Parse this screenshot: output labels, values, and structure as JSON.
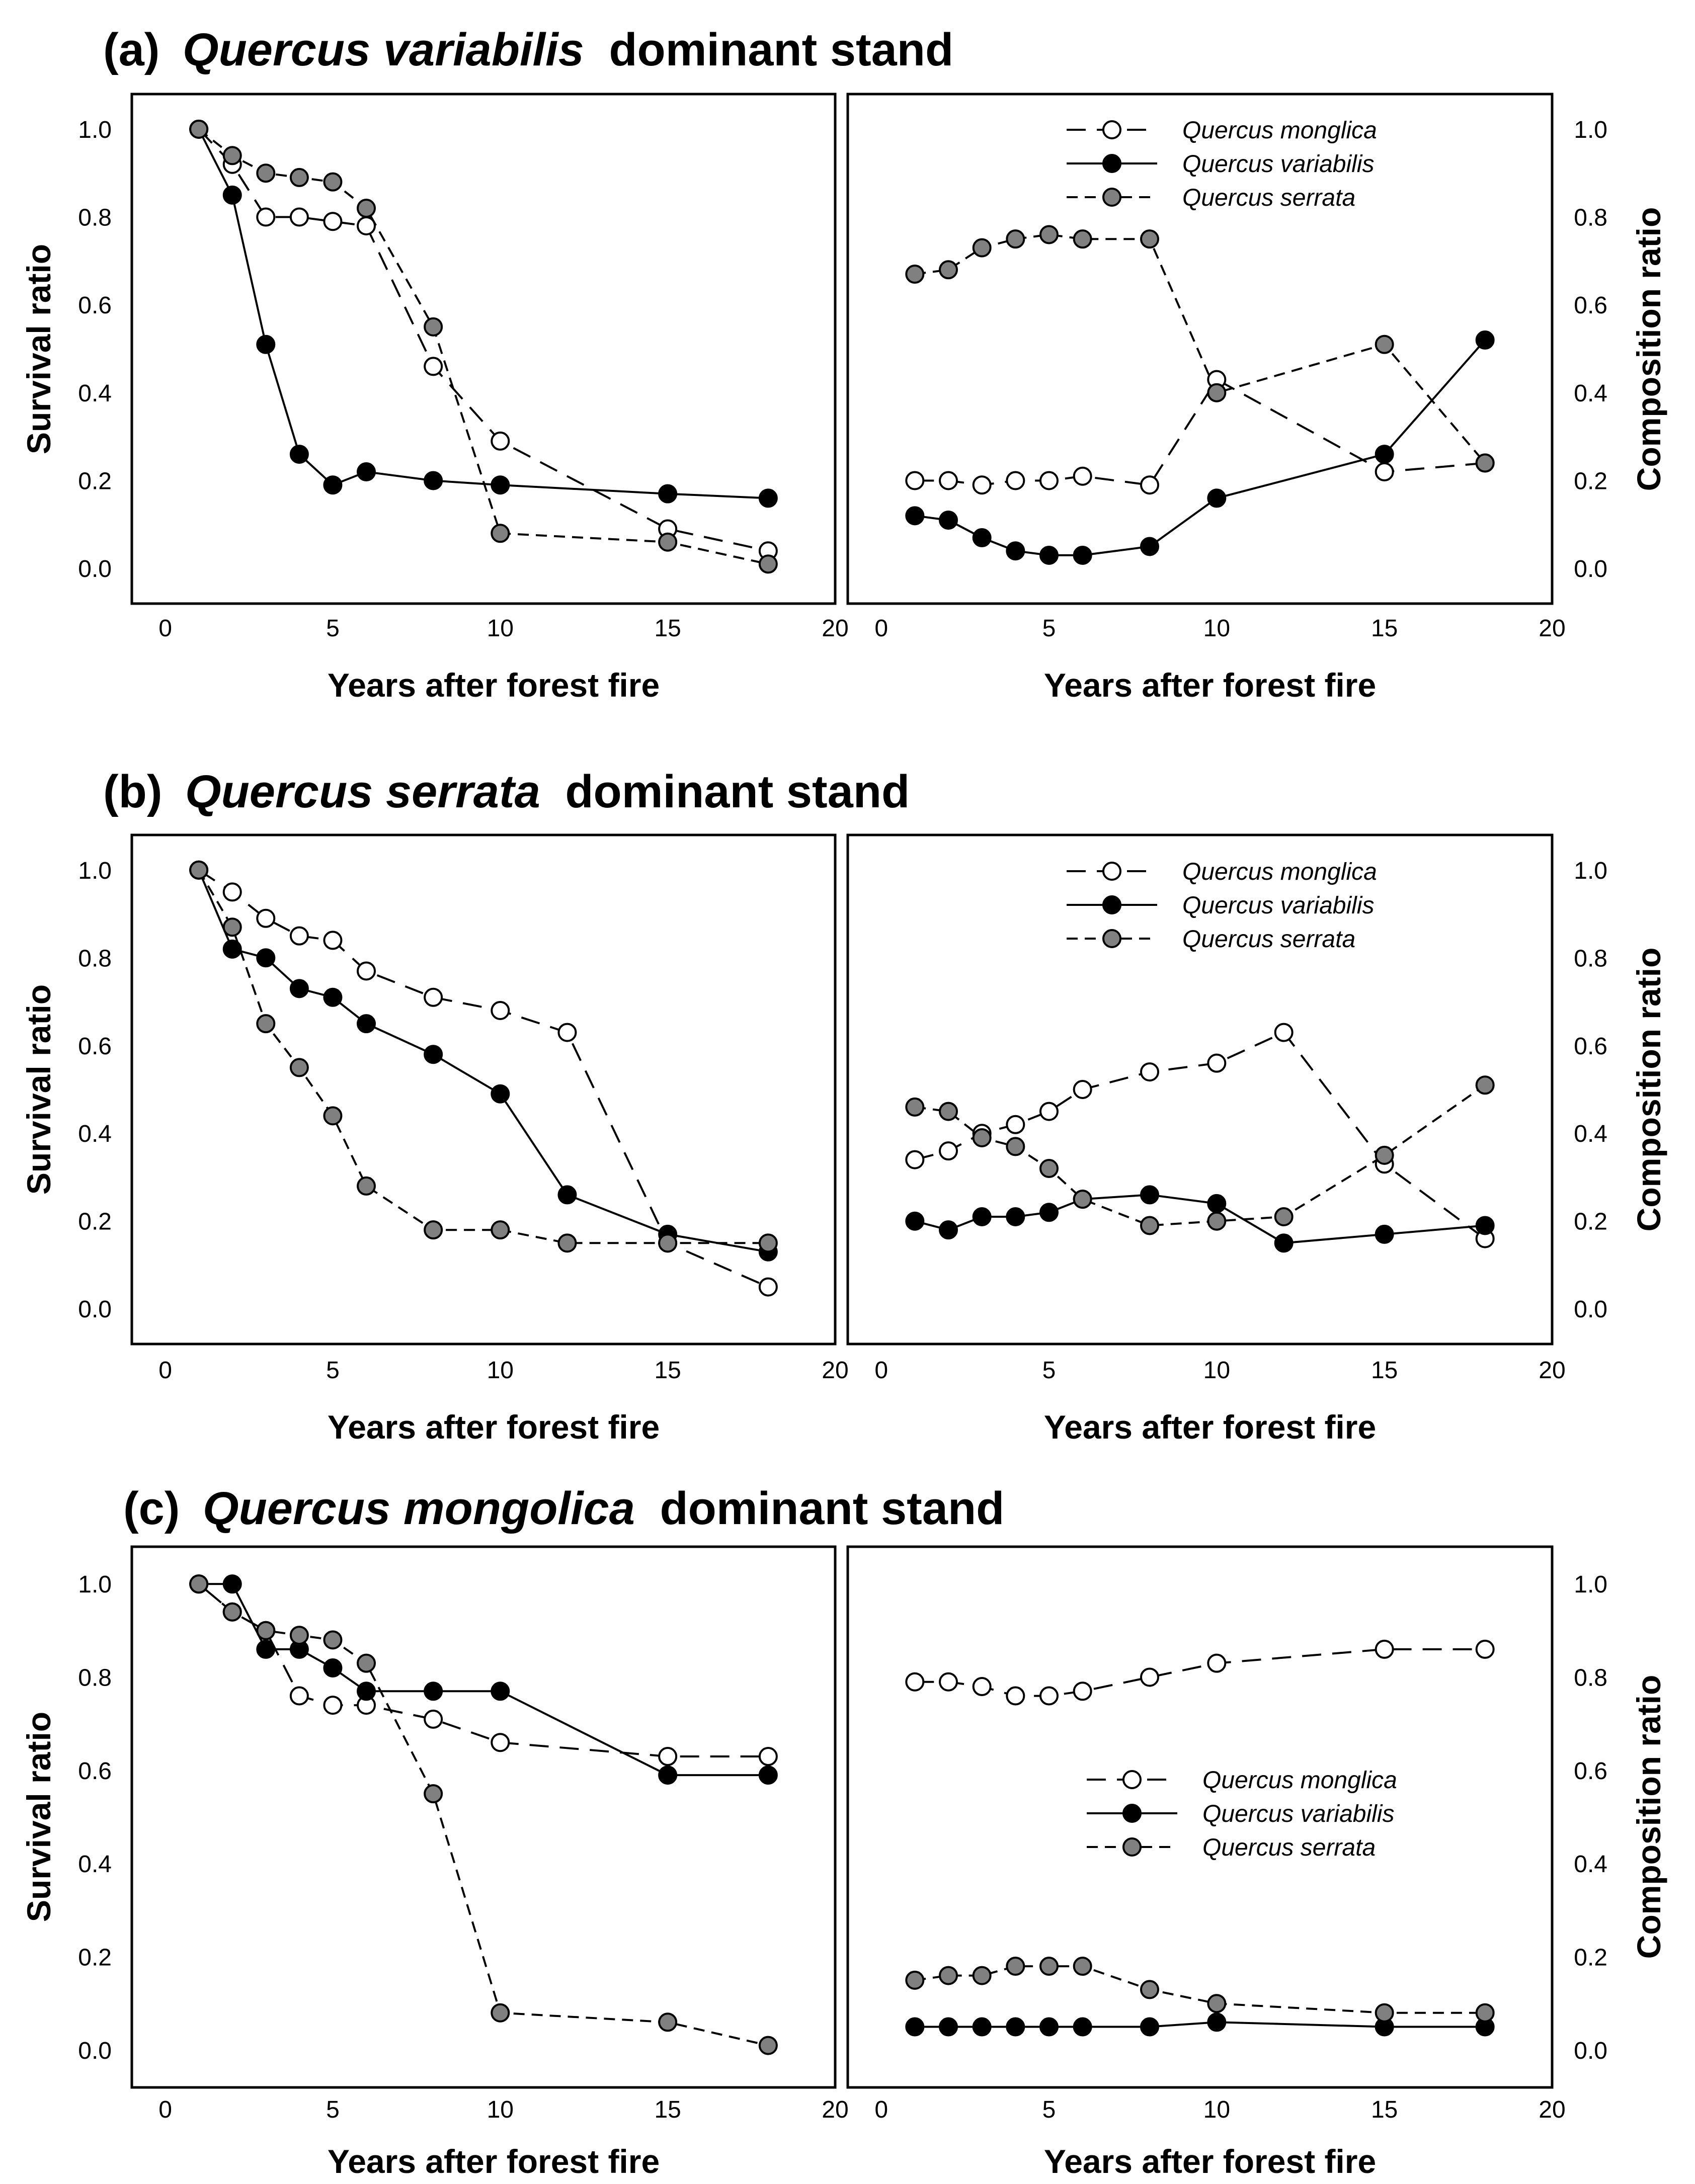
{
  "figure": {
    "x_axis_label": "Years after forest fire",
    "y_axis_label_left": "Survival ratio",
    "y_axis_label_right": "Composition ratio",
    "x_ticks": [
      "0",
      "5",
      "10",
      "15",
      "20"
    ],
    "y_ticks": [
      "0.0",
      "0.2",
      "0.4",
      "0.6",
      "0.8",
      "1.0"
    ],
    "legend": [
      {
        "name": "Quercus monglica",
        "marker": "open-circle",
        "line": "long-dash",
        "color": "#ffffff"
      },
      {
        "name": "Quercus variabilis",
        "marker": "filled-circle",
        "line": "solid",
        "color": "#000000"
      },
      {
        "name": "Quercus serrata",
        "marker": "gray-circle",
        "line": "short-dash",
        "color": "#808080"
      }
    ]
  },
  "panels": [
    {
      "label": "(a)",
      "title_species": "Quercus variabilis",
      "title_suffix": "dominant stand"
    },
    {
      "label": "(b)",
      "title_species": "Quercus serrata",
      "title_suffix": "dominant stand"
    },
    {
      "label": "(c)",
      "title_species": "Quercus mongolica",
      "title_suffix": "dominant stand"
    }
  ],
  "chart_data": [
    {
      "type": "line",
      "panel": "(a)",
      "plot": "survival",
      "title": "Quercus variabilis dominant stand",
      "xlabel": "Years after forest fire",
      "ylabel": "Survival ratio",
      "xlim": [
        0,
        20
      ],
      "ylim": [
        -0.08,
        1.08
      ],
      "series": [
        {
          "name": "Quercus monglica",
          "x": [
            1,
            2,
            3,
            4,
            5,
            6,
            8,
            10,
            15,
            18
          ],
          "values": [
            1.0,
            0.92,
            0.8,
            0.8,
            0.79,
            0.78,
            0.46,
            0.29,
            0.09,
            0.04
          ]
        },
        {
          "name": "Quercus variabilis",
          "x": [
            1,
            2,
            3,
            4,
            5,
            6,
            8,
            10,
            15,
            18
          ],
          "values": [
            1.0,
            0.85,
            0.51,
            0.26,
            0.19,
            0.22,
            0.2,
            0.19,
            0.17,
            0.16
          ]
        },
        {
          "name": "Quercus serrata",
          "x": [
            1,
            2,
            3,
            4,
            5,
            6,
            8,
            10,
            15,
            18
          ],
          "values": [
            1.0,
            0.94,
            0.9,
            0.89,
            0.88,
            0.82,
            0.55,
            0.08,
            0.06,
            0.01
          ]
        }
      ]
    },
    {
      "type": "line",
      "panel": "(a)",
      "plot": "composition",
      "xlabel": "Years after forest fire",
      "ylabel": "Composition ratio",
      "xlim": [
        0,
        20
      ],
      "ylim": [
        -0.08,
        1.08
      ],
      "legend_position": "top-right",
      "series": [
        {
          "name": "Quercus monglica",
          "x": [
            1,
            2,
            3,
            4,
            5,
            6,
            8,
            10,
            15,
            18
          ],
          "values": [
            0.2,
            0.2,
            0.19,
            0.2,
            0.2,
            0.21,
            0.19,
            0.43,
            0.22,
            0.24
          ]
        },
        {
          "name": "Quercus variabilis",
          "x": [
            1,
            2,
            3,
            4,
            5,
            6,
            8,
            10,
            15,
            18
          ],
          "values": [
            0.12,
            0.11,
            0.07,
            0.04,
            0.03,
            0.03,
            0.05,
            0.16,
            0.26,
            0.52
          ]
        },
        {
          "name": "Quercus serrata",
          "x": [
            1,
            2,
            3,
            4,
            5,
            6,
            8,
            10,
            15,
            18
          ],
          "values": [
            0.67,
            0.68,
            0.73,
            0.75,
            0.76,
            0.75,
            0.75,
            0.4,
            0.51,
            0.24
          ]
        }
      ]
    },
    {
      "type": "line",
      "panel": "(b)",
      "plot": "survival",
      "title": "Quercus serrata dominant stand",
      "xlabel": "Years after forest fire",
      "ylabel": "Survival ratio",
      "xlim": [
        0,
        20
      ],
      "ylim": [
        -0.08,
        1.08
      ],
      "series": [
        {
          "name": "Quercus monglica",
          "x": [
            1,
            2,
            3,
            4,
            5,
            6,
            8,
            10,
            12,
            15,
            18
          ],
          "values": [
            1.0,
            0.95,
            0.89,
            0.85,
            0.84,
            0.77,
            0.71,
            0.68,
            0.63,
            0.15,
            0.05
          ]
        },
        {
          "name": "Quercus variabilis",
          "x": [
            1,
            2,
            3,
            4,
            5,
            6,
            8,
            10,
            12,
            15,
            18
          ],
          "values": [
            1.0,
            0.82,
            0.8,
            0.73,
            0.71,
            0.65,
            0.58,
            0.49,
            0.26,
            0.17,
            0.13
          ]
        },
        {
          "name": "Quercus serrata",
          "x": [
            1,
            2,
            3,
            4,
            5,
            6,
            8,
            10,
            12,
            15,
            18
          ],
          "values": [
            1.0,
            0.87,
            0.65,
            0.55,
            0.44,
            0.28,
            0.18,
            0.18,
            0.15,
            0.15,
            0.15
          ]
        }
      ]
    },
    {
      "type": "line",
      "panel": "(b)",
      "plot": "composition",
      "xlabel": "Years after forest fire",
      "ylabel": "Composition ratio",
      "xlim": [
        0,
        20
      ],
      "ylim": [
        -0.08,
        1.08
      ],
      "legend_position": "top-right",
      "series": [
        {
          "name": "Quercus monglica",
          "x": [
            1,
            2,
            3,
            4,
            5,
            6,
            8,
            10,
            12,
            15,
            18
          ],
          "values": [
            0.34,
            0.36,
            0.4,
            0.42,
            0.45,
            0.5,
            0.54,
            0.56,
            0.63,
            0.33,
            0.16
          ]
        },
        {
          "name": "Quercus variabilis",
          "x": [
            1,
            2,
            3,
            4,
            5,
            6,
            8,
            10,
            12,
            15,
            18
          ],
          "values": [
            0.2,
            0.18,
            0.21,
            0.21,
            0.22,
            0.25,
            0.26,
            0.24,
            0.15,
            0.17,
            0.19
          ]
        },
        {
          "name": "Quercus serrata",
          "x": [
            1,
            2,
            3,
            4,
            5,
            6,
            8,
            10,
            12,
            15,
            18
          ],
          "values": [
            0.46,
            0.45,
            0.39,
            0.37,
            0.32,
            0.25,
            0.19,
            0.2,
            0.21,
            0.35,
            0.51
          ]
        }
      ]
    },
    {
      "type": "line",
      "panel": "(c)",
      "plot": "survival",
      "title": "Quercus mongolica dominant stand",
      "xlabel": "Years after forest fire",
      "ylabel": "Survival ratio",
      "xlim": [
        0,
        20
      ],
      "ylim": [
        -0.08,
        1.08
      ],
      "series": [
        {
          "name": "Quercus monglica",
          "x": [
            1,
            2,
            3,
            4,
            5,
            6,
            8,
            10,
            15,
            18
          ],
          "values": [
            1.0,
            0.94,
            0.9,
            0.76,
            0.74,
            0.74,
            0.71,
            0.66,
            0.63,
            0.63
          ]
        },
        {
          "name": "Quercus variabilis",
          "x": [
            1,
            2,
            3,
            4,
            5,
            6,
            8,
            10,
            15,
            18
          ],
          "values": [
            1.0,
            1.0,
            0.86,
            0.86,
            0.82,
            0.77,
            0.77,
            0.77,
            0.59,
            0.59
          ]
        },
        {
          "name": "Quercus serrata",
          "x": [
            1,
            2,
            3,
            4,
            5,
            6,
            8,
            10,
            15,
            18
          ],
          "values": [
            1.0,
            0.94,
            0.9,
            0.89,
            0.88,
            0.83,
            0.55,
            0.08,
            0.06,
            0.01
          ]
        }
      ]
    },
    {
      "type": "line",
      "panel": "(c)",
      "plot": "composition",
      "xlabel": "Years after forest fire",
      "ylabel": "Composition ratio",
      "xlim": [
        0,
        20
      ],
      "ylim": [
        -0.08,
        1.08
      ],
      "legend_position": "center-right",
      "series": [
        {
          "name": "Quercus monglica",
          "x": [
            1,
            2,
            3,
            4,
            5,
            6,
            8,
            10,
            15,
            18
          ],
          "values": [
            0.79,
            0.79,
            0.78,
            0.76,
            0.76,
            0.77,
            0.8,
            0.83,
            0.86,
            0.86
          ]
        },
        {
          "name": "Quercus variabilis",
          "x": [
            1,
            2,
            3,
            4,
            5,
            6,
            8,
            10,
            15,
            18
          ],
          "values": [
            0.05,
            0.05,
            0.05,
            0.05,
            0.05,
            0.05,
            0.05,
            0.06,
            0.05,
            0.05
          ]
        },
        {
          "name": "Quercus serrata",
          "x": [
            1,
            2,
            3,
            4,
            5,
            6,
            8,
            10,
            15,
            18
          ],
          "values": [
            0.15,
            0.16,
            0.16,
            0.18,
            0.18,
            0.18,
            0.13,
            0.1,
            0.08,
            0.08
          ]
        }
      ]
    }
  ]
}
